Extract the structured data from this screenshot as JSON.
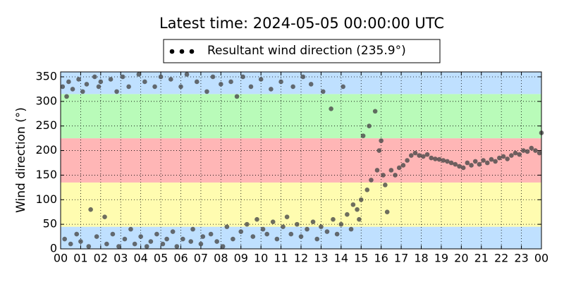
{
  "chart_data": {
    "type": "scatter",
    "title": "Latest time: 2024-05-05 00:00:00 UTC",
    "y_label": "Wind direction (°)",
    "xlim": [
      0,
      24
    ],
    "ylim": [
      0,
      360
    ],
    "xticks": [
      {
        "value": 0,
        "label": "00"
      },
      {
        "value": 1,
        "label": "01"
      },
      {
        "value": 2,
        "label": "02"
      },
      {
        "value": 3,
        "label": "03"
      },
      {
        "value": 4,
        "label": "04"
      },
      {
        "value": 5,
        "label": "05"
      },
      {
        "value": 6,
        "label": "06"
      },
      {
        "value": 7,
        "label": "07"
      },
      {
        "value": 8,
        "label": "08"
      },
      {
        "value": 9,
        "label": "09"
      },
      {
        "value": 10,
        "label": "10"
      },
      {
        "value": 11,
        "label": "11"
      },
      {
        "value": 12,
        "label": "12"
      },
      {
        "value": 13,
        "label": "13"
      },
      {
        "value": 14,
        "label": "14"
      },
      {
        "value": 15,
        "label": "15"
      },
      {
        "value": 16,
        "label": "16"
      },
      {
        "value": 17,
        "label": "17"
      },
      {
        "value": 18,
        "label": "18"
      },
      {
        "value": 19,
        "label": "19"
      },
      {
        "value": 20,
        "label": "20"
      },
      {
        "value": 21,
        "label": "21"
      },
      {
        "value": 22,
        "label": "22"
      },
      {
        "value": 23,
        "label": "23"
      },
      {
        "value": 24,
        "label": "00"
      }
    ],
    "yticks": [
      0,
      50,
      100,
      150,
      200,
      250,
      300,
      350
    ],
    "grid": true,
    "legend": "top",
    "bands": [
      {
        "from": 0,
        "to": 45,
        "color": "#bfe0ff"
      },
      {
        "from": 45,
        "to": 135,
        "color": "#fffcb0"
      },
      {
        "from": 135,
        "to": 225,
        "color": "#ffb6b6"
      },
      {
        "from": 225,
        "to": 315,
        "color": "#b9fbb9"
      },
      {
        "from": 315,
        "to": 360,
        "color": "#bfe0ff"
      }
    ],
    "series": [
      {
        "name": "Resultant wind direction (235.9°)",
        "color": "#4a4a4a",
        "x": [
          0.1,
          0.2,
          0.3,
          0.4,
          0.5,
          0.6,
          0.8,
          0.9,
          1.0,
          1.1,
          1.3,
          1.4,
          1.5,
          1.7,
          1.8,
          1.9,
          2.0,
          2.2,
          2.3,
          2.5,
          2.6,
          2.8,
          2.9,
          3.1,
          3.2,
          3.4,
          3.5,
          3.7,
          3.9,
          4.0,
          4.2,
          4.3,
          4.5,
          4.7,
          4.8,
          5.0,
          5.1,
          5.3,
          5.5,
          5.6,
          5.8,
          6.0,
          6.1,
          6.3,
          6.5,
          6.6,
          6.8,
          7.0,
          7.1,
          7.3,
          7.5,
          7.6,
          7.8,
          8.0,
          8.1,
          8.3,
          8.5,
          8.6,
          8.8,
          9.0,
          9.1,
          9.3,
          9.5,
          9.6,
          9.8,
          10.0,
          10.1,
          10.3,
          10.5,
          10.6,
          10.8,
          11.0,
          11.1,
          11.3,
          11.5,
          11.6,
          11.8,
          12.0,
          12.1,
          12.3,
          12.5,
          12.6,
          12.8,
          13.0,
          13.1,
          13.3,
          13.5,
          13.6,
          13.8,
          14.0,
          14.1,
          14.3,
          14.5,
          14.6,
          14.8,
          14.9,
          15.0,
          15.1,
          15.3,
          15.4,
          15.5,
          15.7,
          15.8,
          15.9,
          16.0,
          16.1,
          16.2,
          16.3,
          16.5,
          16.7,
          16.9,
          17.1,
          17.3,
          17.5,
          17.7,
          17.9,
          18.1,
          18.3,
          18.5,
          18.7,
          18.9,
          19.1,
          19.3,
          19.5,
          19.7,
          19.9,
          20.1,
          20.3,
          20.5,
          20.7,
          20.9,
          21.1,
          21.3,
          21.5,
          21.7,
          21.9,
          22.1,
          22.3,
          22.5,
          22.7,
          22.9,
          23.1,
          23.3,
          23.5,
          23.7,
          23.9,
          24.0
        ],
        "values": [
          330,
          20,
          310,
          340,
          10,
          325,
          30,
          345,
          15,
          320,
          335,
          5,
          80,
          350,
          25,
          330,
          340,
          65,
          10,
          345,
          30,
          320,
          5,
          350,
          20,
          330,
          40,
          10,
          355,
          25,
          340,
          5,
          15,
          330,
          30,
          350,
          10,
          20,
          345,
          35,
          5,
          330,
          20,
          355,
          15,
          40,
          340,
          10,
          25,
          320,
          30,
          350,
          15,
          335,
          5,
          45,
          340,
          20,
          310,
          35,
          350,
          50,
          330,
          25,
          60,
          345,
          40,
          30,
          325,
          55,
          20,
          340,
          45,
          65,
          30,
          330,
          50,
          25,
          350,
          40,
          335,
          55,
          20,
          45,
          320,
          35,
          285,
          60,
          30,
          50,
          330,
          70,
          40,
          90,
          80,
          60,
          100,
          230,
          120,
          250,
          140,
          280,
          160,
          200,
          220,
          150,
          130,
          75,
          160,
          150,
          165,
          170,
          180,
          190,
          195,
          190,
          188,
          192,
          185,
          183,
          182,
          180,
          178,
          175,
          172,
          168,
          165,
          175,
          170,
          178,
          172,
          180,
          175,
          182,
          178,
          185,
          188,
          183,
          190,
          195,
          192,
          200,
          198,
          205,
          200,
          195,
          236
        ]
      }
    ]
  }
}
